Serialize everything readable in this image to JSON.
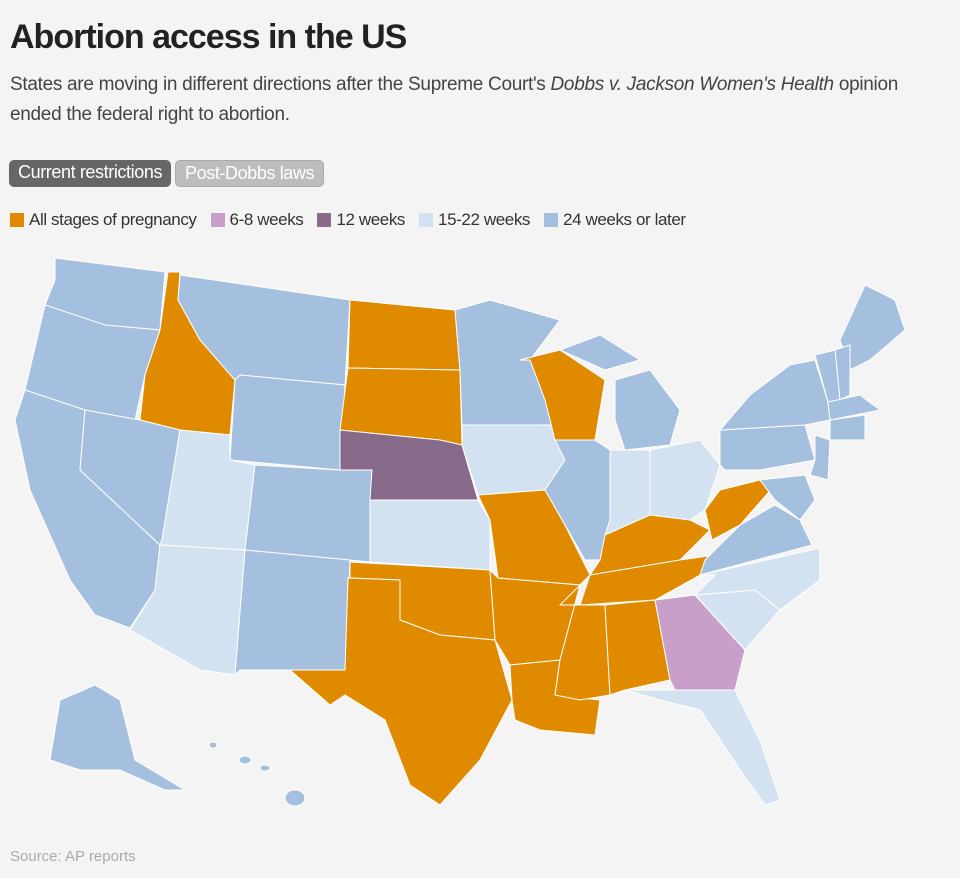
{
  "header": {
    "title": "Abortion access in the US",
    "subtitle": {
      "before": "States are moving in different directions after the Supreme Court's",
      "italic": "Dobbs v. Jackson Women's Health",
      "after": "opinion ended the federal right to abortion."
    }
  },
  "tabs": [
    "Current restrictions",
    "Post-Dobbs laws"
  ],
  "legend": [
    {
      "label": "All stages of pregnancy",
      "color": "#e08a00"
    },
    {
      "label": "6-8 weeks",
      "color": "#c79fc9"
    },
    {
      "label": "12 weeks",
      "color": "#87698a"
    },
    {
      "label": "15-22 weeks",
      "color": "#d3e2f1"
    },
    {
      "label": "24 weeks or later",
      "color": "#a5bfdf"
    }
  ],
  "source": "Source: AP reports"
}
